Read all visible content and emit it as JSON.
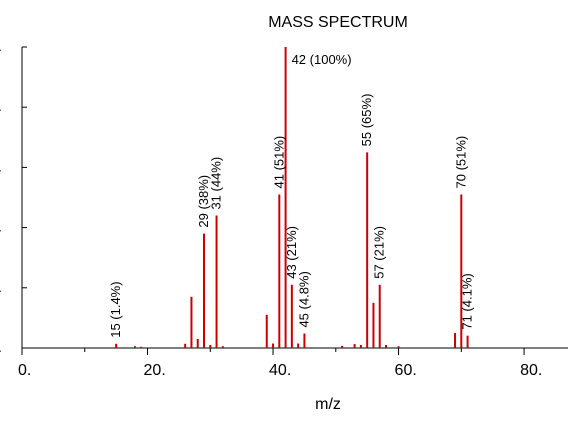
{
  "chart_data": {
    "type": "bar",
    "title": "MASS SPECTRUM",
    "xlabel": "m/z",
    "ylabel": "",
    "xlim": [
      0,
      87
    ],
    "ylim": [
      0,
      100
    ],
    "x_ticks": [
      "0.",
      "20.",
      "40.",
      "60.",
      "80."
    ],
    "x_tick_values": [
      0,
      20,
      40,
      60,
      80
    ],
    "y_ticks": [
      0,
      20,
      40,
      60,
      80,
      100
    ],
    "grid": false,
    "bar_color": "#cc0000",
    "peaks": [
      {
        "mz": 15,
        "intensity": 1.4
      },
      {
        "mz": 18,
        "intensity": 0.6
      },
      {
        "mz": 19,
        "intensity": 0.4
      },
      {
        "mz": 26,
        "intensity": 1.4
      },
      {
        "mz": 27,
        "intensity": 17
      },
      {
        "mz": 28,
        "intensity": 3
      },
      {
        "mz": 29,
        "intensity": 38
      },
      {
        "mz": 30,
        "intensity": 1
      },
      {
        "mz": 31,
        "intensity": 44
      },
      {
        "mz": 32,
        "intensity": 0.6
      },
      {
        "mz": 39,
        "intensity": 11
      },
      {
        "mz": 40,
        "intensity": 1.5
      },
      {
        "mz": 41,
        "intensity": 51
      },
      {
        "mz": 42,
        "intensity": 100
      },
      {
        "mz": 43,
        "intensity": 21
      },
      {
        "mz": 44,
        "intensity": 1.5
      },
      {
        "mz": 45,
        "intensity": 4.8
      },
      {
        "mz": 51,
        "intensity": 0.7
      },
      {
        "mz": 53,
        "intensity": 1.3
      },
      {
        "mz": 54,
        "intensity": 1
      },
      {
        "mz": 55,
        "intensity": 65
      },
      {
        "mz": 56,
        "intensity": 15
      },
      {
        "mz": 57,
        "intensity": 21
      },
      {
        "mz": 58,
        "intensity": 1
      },
      {
        "mz": 60,
        "intensity": 0.6
      },
      {
        "mz": 69,
        "intensity": 5
      },
      {
        "mz": 70,
        "intensity": 51
      },
      {
        "mz": 71,
        "intensity": 4.1
      }
    ],
    "annotations": [
      {
        "mz": 15,
        "intensity": 1.4,
        "text": "15 (1.4%)"
      },
      {
        "mz": 29,
        "intensity": 38,
        "text": "29 (38%)"
      },
      {
        "mz": 31,
        "intensity": 44,
        "text": "31 (44%)"
      },
      {
        "mz": 41,
        "intensity": 51,
        "text": "41 (51%)"
      },
      {
        "mz": 42,
        "intensity": 100,
        "text": "42 (100%)"
      },
      {
        "mz": 43,
        "intensity": 21,
        "text": "43 (21%)"
      },
      {
        "mz": 45,
        "intensity": 4.8,
        "text": "45 (4.8%)"
      },
      {
        "mz": 55,
        "intensity": 65,
        "text": "55 (65%)"
      },
      {
        "mz": 57,
        "intensity": 21,
        "text": "57 (21%)"
      },
      {
        "mz": 70,
        "intensity": 51,
        "text": "70 (51%)"
      },
      {
        "mz": 71,
        "intensity": 4.1,
        "text": "71 (4.1%)"
      }
    ]
  }
}
